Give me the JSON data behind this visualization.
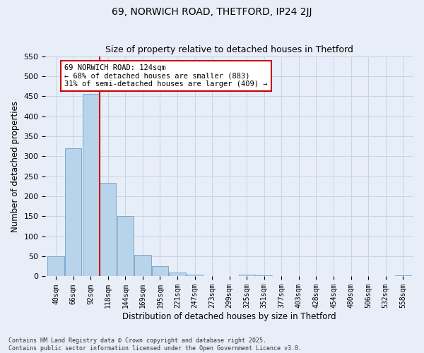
{
  "title": "69, NORWICH ROAD, THETFORD, IP24 2JJ",
  "subtitle": "Size of property relative to detached houses in Thetford",
  "xlabel": "Distribution of detached houses by size in Thetford",
  "ylabel": "Number of detached properties",
  "bar_labels": [
    "40sqm",
    "66sqm",
    "92sqm",
    "118sqm",
    "144sqm",
    "169sqm",
    "195sqm",
    "221sqm",
    "247sqm",
    "273sqm",
    "299sqm",
    "325sqm",
    "351sqm",
    "377sqm",
    "403sqm",
    "428sqm",
    "454sqm",
    "480sqm",
    "506sqm",
    "532sqm",
    "558sqm"
  ],
  "bar_values": [
    50,
    320,
    455,
    233,
    150,
    54,
    25,
    10,
    5,
    0,
    0,
    5,
    2,
    0,
    0,
    0,
    0,
    0,
    0,
    0,
    2
  ],
  "bar_color": "#b8d4ea",
  "bar_edge_color": "#7aaacf",
  "vline_color": "#cc0000",
  "ylim": [
    0,
    550
  ],
  "yticks": [
    0,
    50,
    100,
    150,
    200,
    250,
    300,
    350,
    400,
    450,
    500,
    550
  ],
  "annotation_title": "69 NORWICH ROAD: 124sqm",
  "annotation_line1": "← 68% of detached houses are smaller (883)",
  "annotation_line2": "31% of semi-detached houses are larger (409) →",
  "annotation_box_color": "#ffffff",
  "annotation_box_edge": "#cc0000",
  "footer_line1": "Contains HM Land Registry data © Crown copyright and database right 2025.",
  "footer_line2": "Contains public sector information licensed under the Open Government Licence v3.0.",
  "bg_color": "#e8eef8",
  "grid_color": "#c8d4e4"
}
